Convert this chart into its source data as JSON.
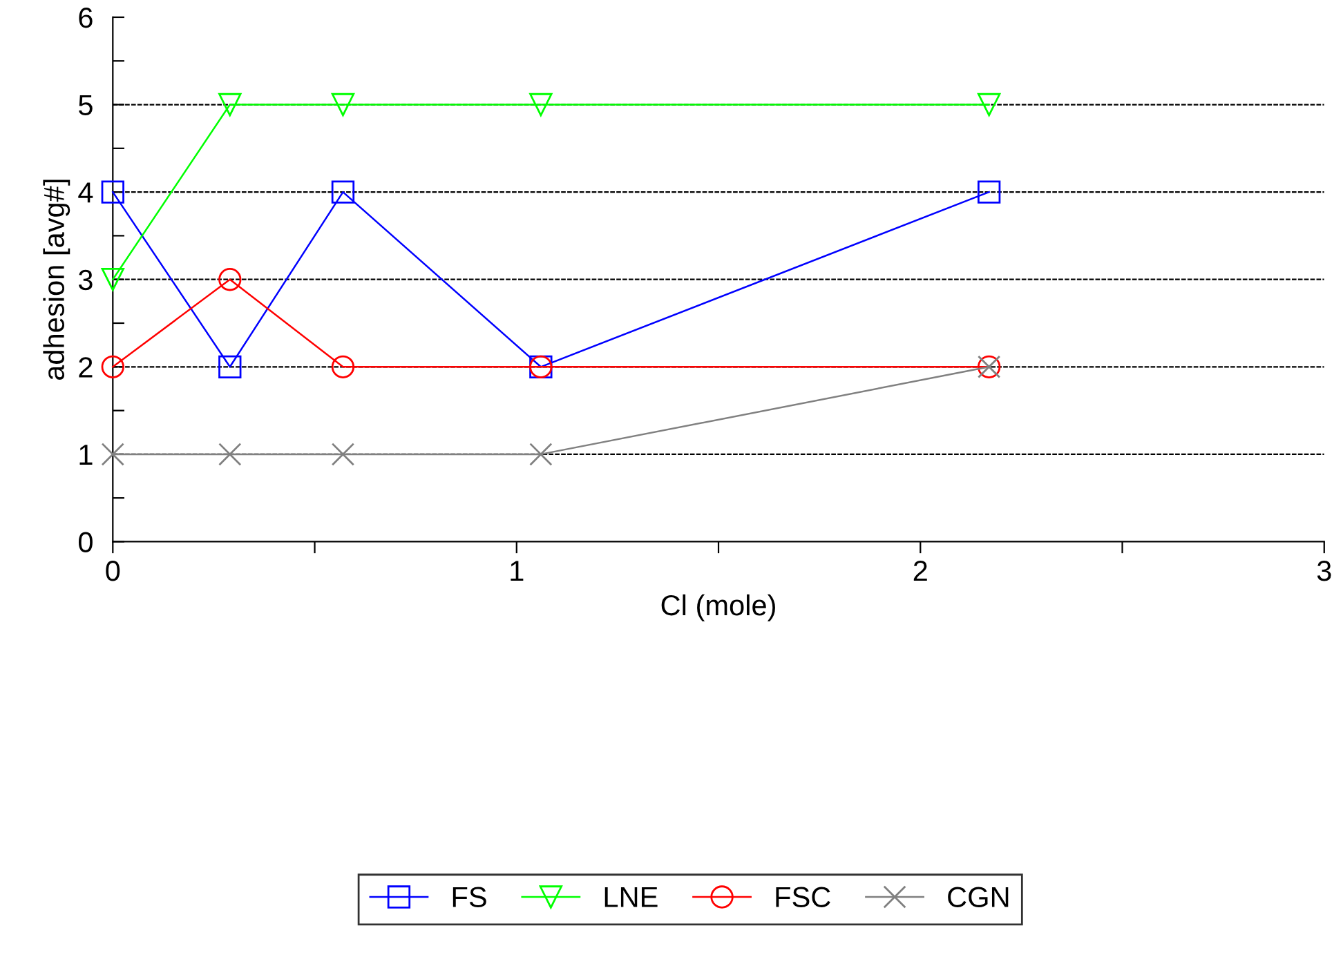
{
  "chart_data": {
    "type": "line",
    "xlabel": "Cl (mole)",
    "ylabel": "adhesion [avg#]",
    "x": [
      0,
      0.29,
      0.57,
      1.06,
      2.17
    ],
    "series": [
      {
        "name": "FS",
        "color": "#0000ff",
        "values": [
          4,
          2,
          4,
          2,
          4
        ],
        "marker": "square"
      },
      {
        "name": "LNE",
        "color": "#00ff00",
        "values": [
          3,
          5,
          5,
          5,
          5
        ],
        "marker": "triangle"
      },
      {
        "name": "FSC",
        "color": "#ff0000",
        "values": [
          2,
          3,
          2,
          2,
          2
        ],
        "marker": "circle"
      },
      {
        "name": "CGN",
        "color": "#808080",
        "values": [
          1,
          1,
          1,
          1,
          2
        ],
        "marker": "cross"
      }
    ],
    "xlim": [
      0,
      3
    ],
    "ylim": [
      0,
      6
    ],
    "xticks": [
      0,
      {
        "value": 0.5,
        "label": null
      },
      1,
      {
        "value": 1.5,
        "label": null
      },
      2,
      {
        "value": 2.5,
        "label": null
      },
      3
    ],
    "yticks": [
      0,
      {
        "value": 0.5,
        "label": null
      },
      1,
      {
        "value": 1.5,
        "label": null
      },
      2,
      {
        "value": 2.5,
        "label": null
      },
      3,
      {
        "value": 3.5,
        "label": null
      },
      4,
      {
        "value": 4.5,
        "label": null
      },
      5,
      {
        "value": 5.5,
        "label": null
      },
      6
    ],
    "grid": "y",
    "legend": "bottom",
    "line_style": "solid"
  }
}
